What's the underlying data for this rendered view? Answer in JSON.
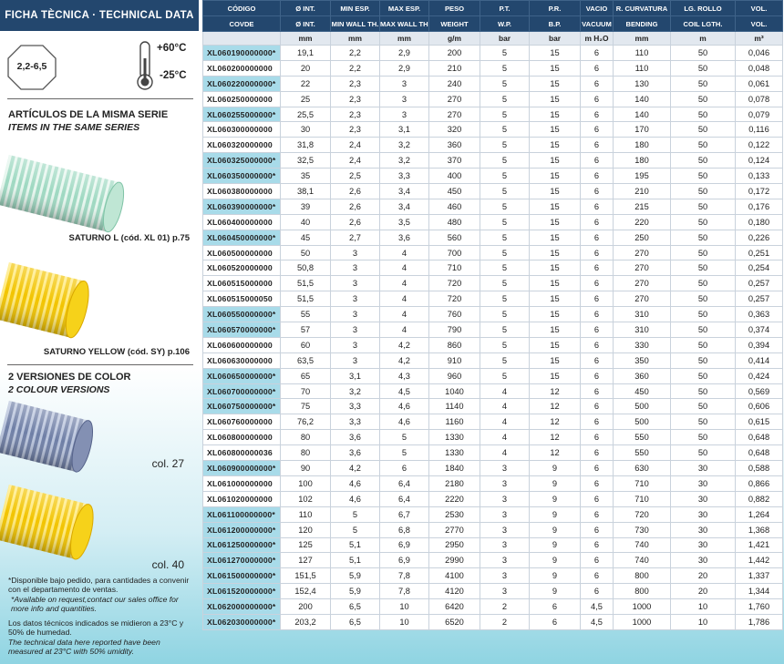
{
  "sidebar": {
    "title": "FICHA TÈCNICA · TECHNICAL DATA",
    "badge": "2,2-6,5",
    "temp_max": "+60°C",
    "temp_min": "-25°C",
    "series_title": "ARTÍCULOS DE LA MISMA SERIE",
    "series_subtitle": "ITEMS IN THE SAME SERIES",
    "products": [
      "SATURNO L  (cód. XL 01) p.75",
      "SATURNO YELLOW  (cód. SY) p.106"
    ],
    "colors_title": "2 VERSIONES DE COLOR",
    "colors_subtitle": "2 COLOUR VERSIONS",
    "colors": [
      "col. 27",
      "col. 40"
    ],
    "notes": [
      "*Disponible bajo pedido, para cantidades a convenir con el departamento de ventas.",
      "*Available on request,contact our sales office for more info and quantities.",
      "Los datos técnicos indicados se midieron a 23°C y 50% de humedad.",
      "The technical data here reported have been measured at 23°C with 50% umidity."
    ]
  },
  "table": {
    "header_es": [
      "CÓDIGO",
      "Ø INT.",
      "MIN ESP.",
      "MAX ESP.",
      "PESO",
      "P.T.",
      "P.R.",
      "VACIO",
      "R. CURVATURA",
      "LG. ROLLO",
      "VOL."
    ],
    "header_en": [
      "COVDE",
      "Ø INT.",
      "MIN WALL TH.",
      "MAX WALL TH.",
      "WEIGHT",
      "W.P.",
      "B.P.",
      "VACUUM",
      "BENDING",
      "COIL LGTH.",
      "VOL."
    ],
    "units": [
      "mm",
      "mm",
      "mm",
      "g/m",
      "bar",
      "bar",
      "m H₂O",
      "mm",
      "m",
      "m³"
    ],
    "rows": [
      [
        "XL060190000000*",
        "19,1",
        "2,2",
        "2,9",
        "200",
        "5",
        "15",
        "6",
        "110",
        "50",
        "0,046"
      ],
      [
        "XL060200000000",
        "20",
        "2,2",
        "2,9",
        "210",
        "5",
        "15",
        "6",
        "110",
        "50",
        "0,048"
      ],
      [
        "XL060220000000*",
        "22",
        "2,3",
        "3",
        "240",
        "5",
        "15",
        "6",
        "130",
        "50",
        "0,061"
      ],
      [
        "XL060250000000",
        "25",
        "2,3",
        "3",
        "270",
        "5",
        "15",
        "6",
        "140",
        "50",
        "0,078"
      ],
      [
        "XL060255000000*",
        "25,5",
        "2,3",
        "3",
        "270",
        "5",
        "15",
        "6",
        "140",
        "50",
        "0,079"
      ],
      [
        "XL060300000000",
        "30",
        "2,3",
        "3,1",
        "320",
        "5",
        "15",
        "6",
        "170",
        "50",
        "0,116"
      ],
      [
        "XL060320000000",
        "31,8",
        "2,4",
        "3,2",
        "360",
        "5",
        "15",
        "6",
        "180",
        "50",
        "0,122"
      ],
      [
        "XL060325000000*",
        "32,5",
        "2,4",
        "3,2",
        "370",
        "5",
        "15",
        "6",
        "180",
        "50",
        "0,124"
      ],
      [
        "XL060350000000*",
        "35",
        "2,5",
        "3,3",
        "400",
        "5",
        "15",
        "6",
        "195",
        "50",
        "0,133"
      ],
      [
        "XL060380000000",
        "38,1",
        "2,6",
        "3,4",
        "450",
        "5",
        "15",
        "6",
        "210",
        "50",
        "0,172"
      ],
      [
        "XL060390000000*",
        "39",
        "2,6",
        "3,4",
        "460",
        "5",
        "15",
        "6",
        "215",
        "50",
        "0,176"
      ],
      [
        "XL060400000000",
        "40",
        "2,6",
        "3,5",
        "480",
        "5",
        "15",
        "6",
        "220",
        "50",
        "0,180"
      ],
      [
        "XL060450000000*",
        "45",
        "2,7",
        "3,6",
        "560",
        "5",
        "15",
        "6",
        "250",
        "50",
        "0,226"
      ],
      [
        "XL060500000000",
        "50",
        "3",
        "4",
        "700",
        "5",
        "15",
        "6",
        "270",
        "50",
        "0,251"
      ],
      [
        "XL060520000000",
        "50,8",
        "3",
        "4",
        "710",
        "5",
        "15",
        "6",
        "270",
        "50",
        "0,254"
      ],
      [
        "XL060515000000",
        "51,5",
        "3",
        "4",
        "720",
        "5",
        "15",
        "6",
        "270",
        "50",
        "0,257"
      ],
      [
        "XL060515000050",
        "51,5",
        "3",
        "4",
        "720",
        "5",
        "15",
        "6",
        "270",
        "50",
        "0,257"
      ],
      [
        "XL060550000000*",
        "55",
        "3",
        "4",
        "760",
        "5",
        "15",
        "6",
        "310",
        "50",
        "0,363"
      ],
      [
        "XL060570000000*",
        "57",
        "3",
        "4",
        "790",
        "5",
        "15",
        "6",
        "310",
        "50",
        "0,374"
      ],
      [
        "XL060600000000",
        "60",
        "3",
        "4,2",
        "860",
        "5",
        "15",
        "6",
        "330",
        "50",
        "0,394"
      ],
      [
        "XL060630000000",
        "63,5",
        "3",
        "4,2",
        "910",
        "5",
        "15",
        "6",
        "350",
        "50",
        "0,414"
      ],
      [
        "XL060650000000*",
        "65",
        "3,1",
        "4,3",
        "960",
        "5",
        "15",
        "6",
        "360",
        "50",
        "0,424"
      ],
      [
        "XL060700000000*",
        "70",
        "3,2",
        "4,5",
        "1040",
        "4",
        "12",
        "6",
        "450",
        "50",
        "0,569"
      ],
      [
        "XL060750000000*",
        "75",
        "3,3",
        "4,6",
        "1140",
        "4",
        "12",
        "6",
        "500",
        "50",
        "0,606"
      ],
      [
        "XL060760000000",
        "76,2",
        "3,3",
        "4,6",
        "1160",
        "4",
        "12",
        "6",
        "500",
        "50",
        "0,615"
      ],
      [
        "XL060800000000",
        "80",
        "3,6",
        "5",
        "1330",
        "4",
        "12",
        "6",
        "550",
        "50",
        "0,648"
      ],
      [
        "XL060800000036",
        "80",
        "3,6",
        "5",
        "1330",
        "4",
        "12",
        "6",
        "550",
        "50",
        "0,648"
      ],
      [
        "XL060900000000*",
        "90",
        "4,2",
        "6",
        "1840",
        "3",
        "9",
        "6",
        "630",
        "30",
        "0,588"
      ],
      [
        "XL061000000000",
        "100",
        "4,6",
        "6,4",
        "2180",
        "3",
        "9",
        "6",
        "710",
        "30",
        "0,866"
      ],
      [
        "XL061020000000",
        "102",
        "4,6",
        "6,4",
        "2220",
        "3",
        "9",
        "6",
        "710",
        "30",
        "0,882"
      ],
      [
        "XL061100000000*",
        "110",
        "5",
        "6,7",
        "2530",
        "3",
        "9",
        "6",
        "720",
        "30",
        "1,264"
      ],
      [
        "XL061200000000*",
        "120",
        "5",
        "6,8",
        "2770",
        "3",
        "9",
        "6",
        "730",
        "30",
        "1,368"
      ],
      [
        "XL061250000000*",
        "125",
        "5,1",
        "6,9",
        "2950",
        "3",
        "9",
        "6",
        "740",
        "30",
        "1,421"
      ],
      [
        "XL061270000000*",
        "127",
        "5,1",
        "6,9",
        "2990",
        "3",
        "9",
        "6",
        "740",
        "30",
        "1,442"
      ],
      [
        "XL061500000000*",
        "151,5",
        "5,9",
        "7,8",
        "4100",
        "3",
        "9",
        "6",
        "800",
        "20",
        "1,337"
      ],
      [
        "XL061520000000*",
        "152,4",
        "5,9",
        "7,8",
        "4120",
        "3",
        "9",
        "6",
        "800",
        "20",
        "1,344"
      ],
      [
        "XL062000000000*",
        "200",
        "6,5",
        "10",
        "6420",
        "2",
        "6",
        "4,5",
        "1000",
        "10",
        "1,760"
      ],
      [
        "XL062030000000*",
        "203,2",
        "6,5",
        "10",
        "6520",
        "2",
        "6",
        "4,5",
        "1000",
        "10",
        "1,786"
      ]
    ]
  }
}
